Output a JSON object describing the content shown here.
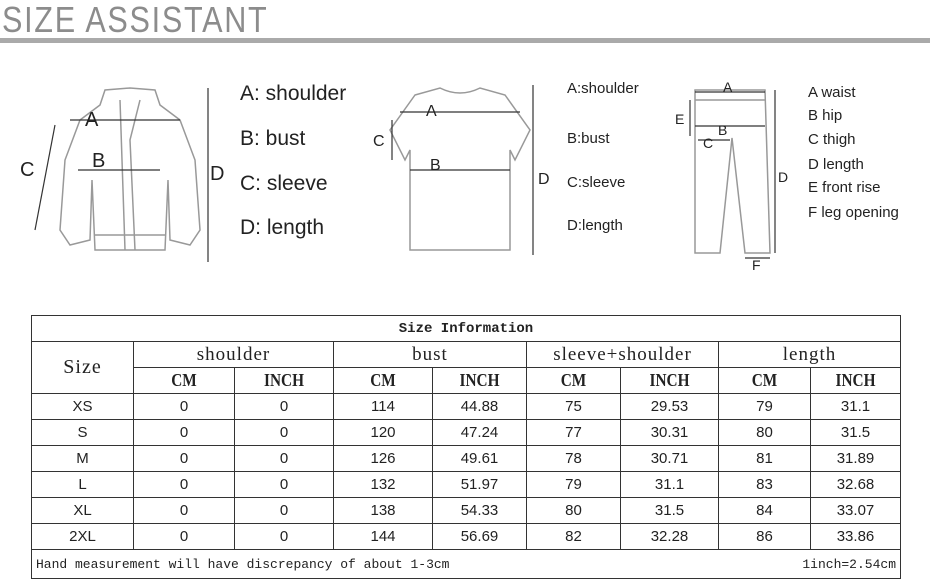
{
  "title": "SIZE ASSISTANT",
  "jacket": {
    "labels": [
      "A: shoulder",
      "B: bust",
      "C: sleeve",
      "D: length"
    ],
    "marks": [
      "A",
      "B",
      "C",
      "D"
    ]
  },
  "tshirt": {
    "labels": [
      "A:shoulder",
      "B:bust",
      "C:sleeve",
      "D:length"
    ],
    "marks": [
      "A",
      "B",
      "C",
      "D"
    ]
  },
  "pants": {
    "labels": [
      "A   waist",
      "B   hip",
      "C   thigh",
      "D   length",
      "E   front rise",
      "F   leg opening"
    ],
    "marks": [
      "A",
      "B",
      "C",
      "D",
      "E",
      "F"
    ]
  },
  "table": {
    "title": "Size Information",
    "size_header": "Size",
    "groups": [
      "shoulder",
      "bust",
      "sleeve+shoulder",
      "length"
    ],
    "units": [
      "CM",
      "INCH"
    ],
    "rows": [
      [
        "XS",
        "0",
        "0",
        "114",
        "44.88",
        "75",
        "29.53",
        "79",
        "31.1"
      ],
      [
        "S",
        "0",
        "0",
        "120",
        "47.24",
        "77",
        "30.31",
        "80",
        "31.5"
      ],
      [
        "M",
        "0",
        "0",
        "126",
        "49.61",
        "78",
        "30.71",
        "81",
        "31.89"
      ],
      [
        "L",
        "0",
        "0",
        "132",
        "51.97",
        "79",
        "31.1",
        "83",
        "32.68"
      ],
      [
        "XL",
        "0",
        "0",
        "138",
        "54.33",
        "80",
        "31.5",
        "84",
        "33.07"
      ],
      [
        "2XL",
        "0",
        "0",
        "144",
        "56.69",
        "82",
        "32.28",
        "86",
        "33.86"
      ]
    ],
    "note": "Hand measurement will have discrepancy of about 1-3cm",
    "conversion": "1inch=2.54cm"
  }
}
